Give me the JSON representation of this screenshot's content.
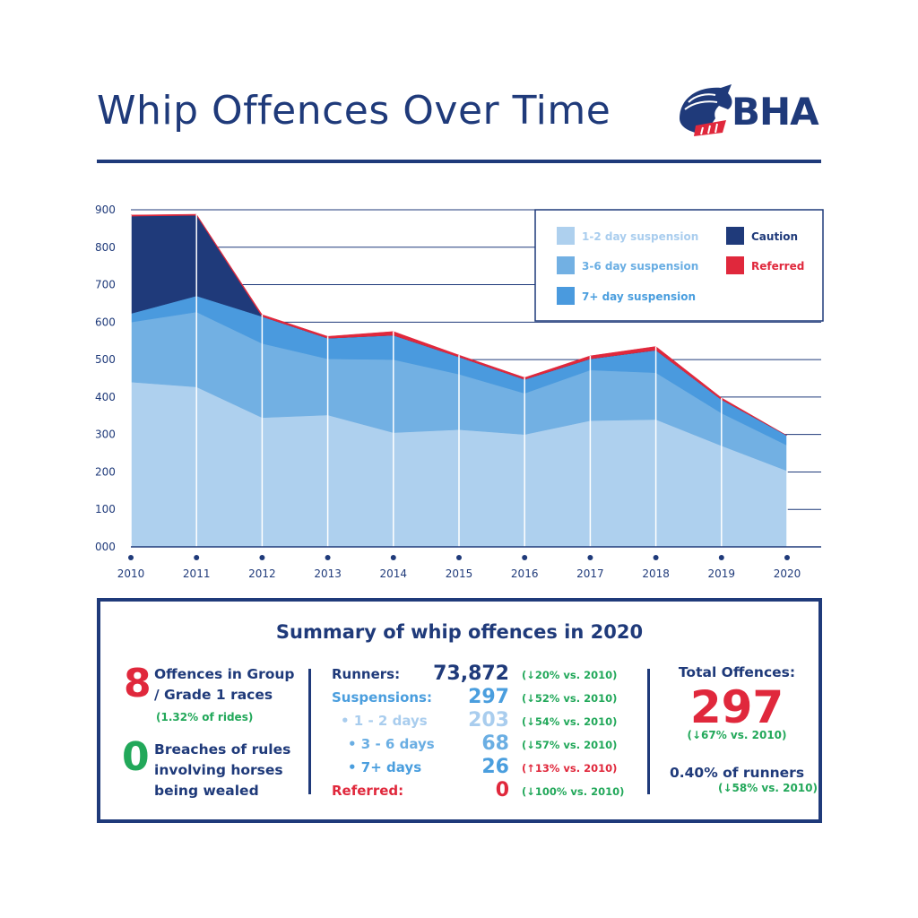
{
  "header": {
    "title": "Whip Offences Over Time",
    "logo_text": "BHA"
  },
  "colors": {
    "navy": "#1f3a7a",
    "light_blue": "#aed0ee",
    "mid_blue": "#72b0e3",
    "blue": "#4a9ade",
    "red": "#e0283c",
    "green": "#22a85a"
  },
  "chart_data": {
    "type": "area",
    "stacked": true,
    "x": [
      "2010",
      "2011",
      "2012",
      "2013",
      "2014",
      "2015",
      "2016",
      "2017",
      "2018",
      "2019",
      "2020"
    ],
    "series": [
      {
        "name": "1-2 day suspension",
        "color": "#aed0ee",
        "values": [
          440,
          427,
          345,
          352,
          305,
          313,
          300,
          337,
          340,
          270,
          203
        ]
      },
      {
        "name": "3-6 day suspension",
        "color": "#72b0e3",
        "values": [
          160,
          200,
          198,
          150,
          195,
          148,
          110,
          135,
          125,
          87,
          68
        ]
      },
      {
        "name": "7+ day suspension",
        "color": "#4a9ade",
        "values": [
          23,
          43,
          72,
          55,
          65,
          46,
          37,
          30,
          60,
          36,
          26
        ]
      },
      {
        "name": "Caution",
        "color": "#1f3a7a",
        "values": [
          260,
          215,
          0,
          0,
          0,
          0,
          0,
          0,
          0,
          0,
          0
        ]
      },
      {
        "name": "Referred",
        "color": "#e0283c",
        "values": [
          3,
          3,
          5,
          5,
          10,
          5,
          5,
          8,
          10,
          5,
          0
        ]
      }
    ],
    "yticks": [
      "000",
      "100",
      "200",
      "300",
      "400",
      "500",
      "600",
      "700",
      "800",
      "900"
    ],
    "ylim": [
      0,
      900
    ],
    "grid": true,
    "legend_position": "top-right"
  },
  "summary": {
    "title": "Summary of whip offences in 2020",
    "group1": {
      "value": "8",
      "text_line1": "Offences in Group",
      "text_line2": "/ Grade 1 races",
      "note": "(1.32% of rides)"
    },
    "wealed": {
      "value": "0",
      "text_line1": "Breaches of rules",
      "text_line2": "involving horses",
      "text_line3": "being wealed"
    },
    "rows": [
      {
        "label": "Runners:",
        "value": "73,872",
        "change": "(↓20% vs. 2010)"
      },
      {
        "label": "Suspensions:",
        "value": "297",
        "change": "(↓52% vs. 2010)"
      },
      {
        "label": "• 1 - 2 days",
        "value": "203",
        "change": "(↓54% vs. 2010)"
      },
      {
        "label": "• 3 - 6 days",
        "value": "68",
        "change": "(↓57% vs. 2010)"
      },
      {
        "label": "• 7+ days",
        "value": "26",
        "change": "(↑13% vs. 2010)"
      },
      {
        "label": "Referred:",
        "value": "0",
        "change": "(↓100% vs. 2010)"
      }
    ],
    "total": {
      "label": "Total Offences:",
      "value": "297",
      "change": "(↓67% vs. 2010)"
    },
    "runners_pct": {
      "label": "0.40% of runners",
      "change": "(↓58% vs. 2010)"
    }
  }
}
